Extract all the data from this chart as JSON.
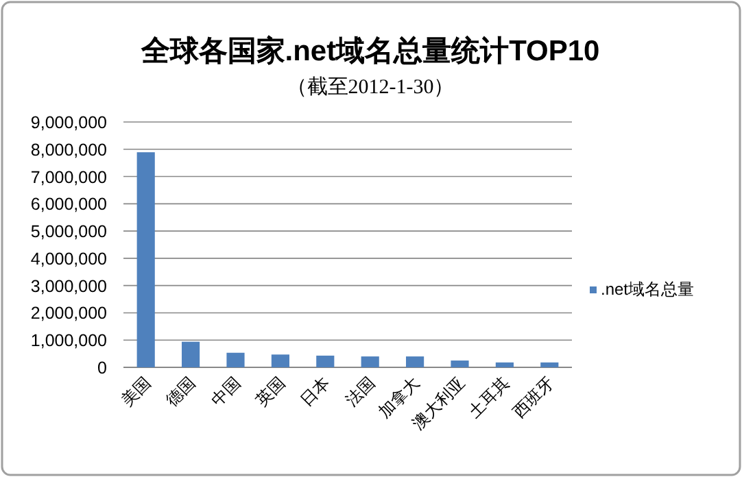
{
  "chart_data": {
    "type": "bar",
    "title": "全球各国家.net域名总量统计TOP10",
    "subtitle": "（截至2012-1-30）",
    "categories": [
      "美国",
      "德国",
      "中国",
      "英国",
      "日本",
      "法国",
      "加拿大",
      "澳大利亚",
      "土耳其",
      "西班牙"
    ],
    "series": [
      {
        "name": ".net域名总量",
        "color": "#4f81bd",
        "values": [
          7890000,
          940000,
          535000,
          470000,
          430000,
          400000,
          400000,
          250000,
          180000,
          180000
        ]
      }
    ],
    "ylim": [
      0,
      9000000
    ],
    "yticks": [
      {
        "value": 0,
        "label": "0"
      },
      {
        "value": 1000000,
        "label": "1,000,000"
      },
      {
        "value": 2000000,
        "label": "2,000,000"
      },
      {
        "value": 3000000,
        "label": "3,000,000"
      },
      {
        "value": 4000000,
        "label": "4,000,000"
      },
      {
        "value": 5000000,
        "label": "5,000,000"
      },
      {
        "value": 6000000,
        "label": "6,000,000"
      },
      {
        "value": 7000000,
        "label": "7,000,000"
      },
      {
        "value": 8000000,
        "label": "8,000,000"
      },
      {
        "value": 9000000,
        "label": "9,000,000"
      }
    ],
    "grid": "y",
    "legend": "right"
  }
}
